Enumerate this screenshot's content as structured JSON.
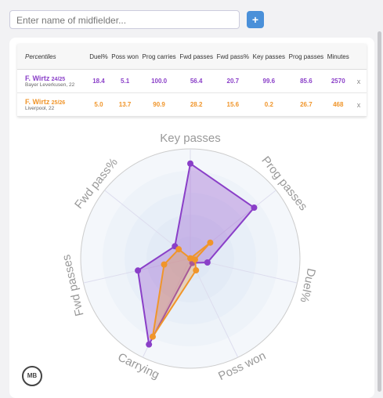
{
  "search": {
    "placeholder": "Enter name of midfielder..."
  },
  "add_button": "+",
  "logo": "MB",
  "table": {
    "header": [
      "Percentiles",
      "Duel%",
      "Poss won",
      "Prog carries",
      "Fwd passes",
      "Fwd pass%",
      "Key passes",
      "Prog passes",
      "Minutes"
    ],
    "rows": [
      {
        "name": "F. Wirtz",
        "season": "24/25",
        "club": "Bayer Leverkusen, 22",
        "cells": [
          "18.4",
          "5.1",
          "100.0",
          "56.4",
          "20.7",
          "99.6",
          "85.6",
          "2570"
        ],
        "remove": "x"
      },
      {
        "name": "F. Wirtz",
        "season": "25/26",
        "club": "Liverpool, 22",
        "cells": [
          "5.0",
          "13.7",
          "90.9",
          "28.2",
          "15.6",
          "0.2",
          "26.7",
          "468"
        ],
        "remove": "x"
      }
    ]
  },
  "chart_data": {
    "type": "radar",
    "categories": [
      "Key passes",
      "Prog passes",
      "Duel%",
      "Poss won",
      "Carrying",
      "Fwd passes",
      "Fwd pass%"
    ],
    "rlim": [
      0,
      115
    ],
    "series": [
      {
        "color": "#8a3fc8",
        "values": [
          99.6,
          85.6,
          18.4,
          5.1,
          100.0,
          56.4,
          20.7
        ]
      },
      {
        "color": "#f0952a",
        "values": [
          0.2,
          26.7,
          5.0,
          13.7,
          90.9,
          28.2,
          15.6
        ]
      }
    ]
  }
}
